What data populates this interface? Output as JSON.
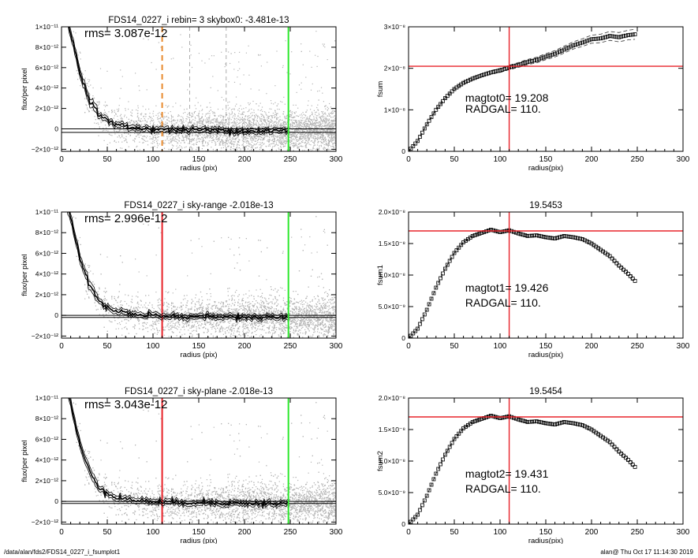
{
  "footer": {
    "path": "/data/alan/fds2/FDS14_0227_i_fsumplot1",
    "timestamp": "alan@  Thu Oct 17 11:14:30 2019"
  },
  "colors": {
    "scatter": "#b3b3b3",
    "profile": "#000000",
    "red_line": "#e8232a",
    "green_line": "#2ee82e",
    "orange_line": "#e88a2e"
  },
  "chart_data": [
    {
      "id": "profile1",
      "type": "scatter",
      "title": "FDS14_0227_i rebin= 3    skybox0: -3.481e-13",
      "annotation": "rms= 3.087e-12",
      "xlabel": "radius (pix)",
      "ylabel": "flux/per pixel",
      "xlim": [
        0,
        300
      ],
      "ylim": [
        -2.2e-12,
        1e-11
      ],
      "xticks": [
        "0",
        "50",
        "100",
        "150",
        "200",
        "250",
        "300"
      ],
      "yticks": [
        {
          "value": -2e-12,
          "label": "−2×10⁻¹²"
        },
        {
          "value": 0,
          "label": "0"
        },
        {
          "value": 2e-12,
          "label": "2×10⁻¹²"
        },
        {
          "value": 4e-12,
          "label": "4×10⁻¹²"
        },
        {
          "value": 6e-12,
          "label": "6×10⁻¹²"
        },
        {
          "value": 8e-12,
          "label": "8×10⁻¹²"
        },
        {
          "value": 1e-11,
          "label": "1×10⁻¹¹"
        }
      ],
      "profile_x": [
        2,
        10,
        20,
        30,
        40,
        50,
        60,
        80,
        100,
        120,
        150,
        180,
        200,
        220,
        248
      ],
      "profile_y": [
        1.2e-11,
        9.5e-12,
        5.5e-12,
        3e-12,
        1.5e-12,
        8e-13,
        4e-13,
        1e-13,
        0,
        -1e-13,
        -1e-13,
        -1.5e-13,
        -2e-13,
        -2e-13,
        -2e-13
      ],
      "hlines": [
        -3.481e-13,
        0
      ],
      "vlines": [
        {
          "x": 110,
          "color": "orange",
          "style": "dashed"
        },
        {
          "x": 248,
          "color": "green",
          "style": "solid"
        },
        {
          "x": 140,
          "color": "gray",
          "style": "dashed"
        },
        {
          "x": 180,
          "color": "gray",
          "style": "dashed"
        }
      ]
    },
    {
      "id": "fsum1",
      "type": "line",
      "title": "",
      "annotation": "magtot0=  19.208",
      "annotation2": "RADGAL=    110.",
      "xlabel": "radius(pix)",
      "ylabel": "fsum",
      "xlim": [
        0,
        300
      ],
      "ylim": [
        0,
        3e-08
      ],
      "xticks": [
        "0",
        "50",
        "100",
        "150",
        "200",
        "250",
        "300"
      ],
      "yticks": [
        {
          "value": 0,
          "label": "0"
        },
        {
          "value": 1e-08,
          "label": "1×10⁻⁸"
        },
        {
          "value": 2e-08,
          "label": "2×10⁻⁸"
        },
        {
          "value": 3e-08,
          "label": "3×10⁻⁸"
        }
      ],
      "x": [
        0,
        10,
        20,
        30,
        40,
        50,
        60,
        70,
        80,
        90,
        100,
        110,
        120,
        130,
        140,
        150,
        160,
        170,
        180,
        190,
        200,
        210,
        220,
        230,
        240,
        248
      ],
      "y": [
        0,
        2.5e-09,
        6.5e-09,
        1e-08,
        1.28e-08,
        1.5e-08,
        1.65e-08,
        1.75e-08,
        1.83e-08,
        1.9e-08,
        1.95e-08,
        2.02e-08,
        2.08e-08,
        2.15e-08,
        2.2e-08,
        2.28e-08,
        2.35e-08,
        2.45e-08,
        2.55e-08,
        2.62e-08,
        2.7e-08,
        2.72e-08,
        2.78e-08,
        2.75e-08,
        2.8e-08,
        2.82e-08
      ],
      "band": 1.2e-09,
      "hline": 2.05e-08,
      "vline": 110
    },
    {
      "id": "profile2",
      "type": "scatter",
      "title": "FDS14_0227_i sky-range -2.018e-13",
      "annotation": "rms= 2.996e-12",
      "xlabel": "radius (pix)",
      "ylabel": "flux/per pixel",
      "xlim": [
        0,
        300
      ],
      "ylim": [
        -2.2e-12,
        1e-11
      ],
      "xticks": [
        "0",
        "50",
        "100",
        "150",
        "200",
        "250",
        "300"
      ],
      "yticks": [
        {
          "value": -2e-12,
          "label": "−2×10⁻¹²"
        },
        {
          "value": 0,
          "label": "0"
        },
        {
          "value": 2e-12,
          "label": "2×10⁻¹²"
        },
        {
          "value": 4e-12,
          "label": "4×10⁻¹²"
        },
        {
          "value": 6e-12,
          "label": "6×10⁻¹²"
        },
        {
          "value": 8e-12,
          "label": "8×10⁻¹²"
        },
        {
          "value": 1e-11,
          "label": "1×10⁻¹¹"
        }
      ],
      "profile_x": [
        2,
        10,
        20,
        30,
        40,
        50,
        60,
        80,
        100,
        120,
        150,
        180,
        200,
        220,
        248
      ],
      "profile_y": [
        1.2e-11,
        9.5e-12,
        5.5e-12,
        3e-12,
        1.5e-12,
        8e-13,
        4e-13,
        1e-13,
        0,
        -1e-13,
        -1e-13,
        -1.5e-13,
        -2e-13,
        -2e-13,
        -2e-13
      ],
      "hlines": [
        -2.018e-13,
        0
      ],
      "vlines": [
        {
          "x": 110,
          "color": "red",
          "style": "solid"
        },
        {
          "x": 248,
          "color": "green",
          "style": "solid"
        }
      ]
    },
    {
      "id": "fsum2",
      "type": "line",
      "title": "19.5453",
      "annotation": "magtot1=  19.426",
      "annotation2": "RADGAL=    110.",
      "xlabel": "radius(pix)",
      "ylabel": "fsum1",
      "xlim": [
        0,
        300
      ],
      "ylim": [
        0,
        2e-08
      ],
      "xticks": [
        "0",
        "50",
        "100",
        "150",
        "200",
        "250",
        "300"
      ],
      "yticks": [
        {
          "value": 0,
          "label": "0"
        },
        {
          "value": 5e-09,
          "label": "5.0×10⁻⁹"
        },
        {
          "value": 1e-08,
          "label": "1.0×10⁻⁸"
        },
        {
          "value": 1.5e-08,
          "label": "1.5×10⁻⁸"
        },
        {
          "value": 2e-08,
          "label": "2.0×10⁻⁸"
        }
      ],
      "x": [
        0,
        10,
        20,
        30,
        40,
        50,
        60,
        70,
        80,
        90,
        100,
        110,
        120,
        130,
        140,
        150,
        160,
        170,
        180,
        190,
        200,
        210,
        220,
        230,
        240,
        248
      ],
      "y": [
        0,
        1.5e-09,
        4.5e-09,
        8e-09,
        1.1e-08,
        1.35e-08,
        1.52e-08,
        1.62e-08,
        1.67e-08,
        1.72e-08,
        1.68e-08,
        1.71e-08,
        1.66e-08,
        1.62e-08,
        1.63e-08,
        1.6e-08,
        1.58e-08,
        1.62e-08,
        1.6e-08,
        1.57e-08,
        1.5e-08,
        1.4e-08,
        1.3e-08,
        1.15e-08,
        1.02e-08,
        9e-09
      ],
      "band": 3e-10,
      "hline": 1.7e-08,
      "vline": 110
    },
    {
      "id": "profile3",
      "type": "scatter",
      "title": "FDS14_0227_i sky-plane -2.018e-13",
      "annotation": "rms= 3.043e-12",
      "xlabel": "radius (pix)",
      "ylabel": "flux/per pixel",
      "xlim": [
        0,
        300
      ],
      "ylim": [
        -2.2e-12,
        1e-11
      ],
      "xticks": [
        "0",
        "50",
        "100",
        "150",
        "200",
        "250",
        "300"
      ],
      "yticks": [
        {
          "value": -2e-12,
          "label": "−2×10⁻¹²"
        },
        {
          "value": 0,
          "label": "0"
        },
        {
          "value": 2e-12,
          "label": "2×10⁻¹²"
        },
        {
          "value": 4e-12,
          "label": "4×10⁻¹²"
        },
        {
          "value": 6e-12,
          "label": "6×10⁻¹²"
        },
        {
          "value": 8e-12,
          "label": "8×10⁻¹²"
        },
        {
          "value": 1e-11,
          "label": "1×10⁻¹¹"
        }
      ],
      "profile_x": [
        2,
        10,
        20,
        30,
        40,
        50,
        60,
        80,
        100,
        120,
        150,
        180,
        200,
        220,
        248
      ],
      "profile_y": [
        1.2e-11,
        9.5e-12,
        5.5e-12,
        3e-12,
        1.5e-12,
        8e-13,
        4e-13,
        1e-13,
        0,
        -1e-13,
        -1e-13,
        -1.5e-13,
        -2e-13,
        -2e-13,
        -2e-13
      ],
      "hlines": [
        -2.018e-13,
        0
      ],
      "vlines": [
        {
          "x": 110,
          "color": "red",
          "style": "solid"
        },
        {
          "x": 248,
          "color": "green",
          "style": "solid"
        }
      ]
    },
    {
      "id": "fsum3",
      "type": "line",
      "title": "19.5454",
      "annotation": "magtot2=  19.431",
      "annotation2": "RADGAL=    110.",
      "xlabel": "radius(pix)",
      "ylabel": "fsum2",
      "xlim": [
        0,
        300
      ],
      "ylim": [
        0,
        2e-08
      ],
      "xticks": [
        "0",
        "50",
        "100",
        "150",
        "200",
        "250",
        "300"
      ],
      "yticks": [
        {
          "value": 0,
          "label": "0"
        },
        {
          "value": 5e-09,
          "label": "5.0×10⁻⁹"
        },
        {
          "value": 1e-08,
          "label": "1.0×10⁻⁸"
        },
        {
          "value": 1.5e-08,
          "label": "1.5×10⁻⁸"
        },
        {
          "value": 2e-08,
          "label": "2.0×10⁻⁸"
        }
      ],
      "x": [
        0,
        10,
        20,
        30,
        40,
        50,
        60,
        70,
        80,
        90,
        100,
        110,
        120,
        130,
        140,
        150,
        160,
        170,
        180,
        190,
        200,
        210,
        220,
        230,
        240,
        248
      ],
      "y": [
        0,
        1.5e-09,
        4.5e-09,
        8e-09,
        1.1e-08,
        1.35e-08,
        1.52e-08,
        1.62e-08,
        1.67e-08,
        1.72e-08,
        1.68e-08,
        1.71e-08,
        1.66e-08,
        1.62e-08,
        1.63e-08,
        1.6e-08,
        1.58e-08,
        1.62e-08,
        1.6e-08,
        1.57e-08,
        1.5e-08,
        1.4e-08,
        1.3e-08,
        1.15e-08,
        1.02e-08,
        9e-09
      ],
      "band": 3e-10,
      "hline": 1.7e-08,
      "vline": 110
    }
  ]
}
